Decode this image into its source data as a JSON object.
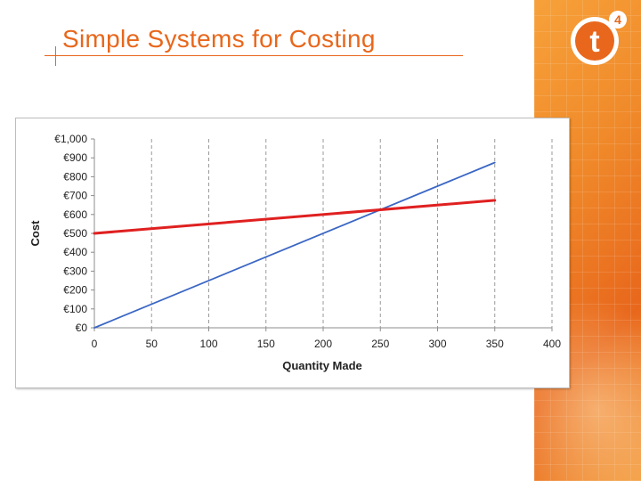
{
  "slide": {
    "title": "Simple Systems for Costing",
    "logo_text": "t",
    "logo_sup": "4",
    "accent_color": "#e8671c"
  },
  "chart_data": {
    "type": "line",
    "xlabel": "Quantity Made",
    "ylabel": "Cost",
    "xlim": [
      0,
      400
    ],
    "ylim": [
      0,
      1000
    ],
    "x_ticks": [
      0,
      50,
      100,
      150,
      200,
      250,
      300,
      350,
      400
    ],
    "y_ticks": [
      0,
      100,
      200,
      300,
      400,
      500,
      600,
      700,
      800,
      900,
      1000
    ],
    "y_tick_labels": [
      "€0",
      "€100",
      "€200",
      "€300",
      "€400",
      "€500",
      "€600",
      "€700",
      "€800",
      "€900",
      "€1,000"
    ],
    "vertical_grid": "dashed",
    "legend": "none",
    "series": [
      {
        "color": "#3a66c4",
        "x": [
          0,
          350
        ],
        "y": [
          0,
          875
        ]
      },
      {
        "color": "#e02020",
        "x": [
          0,
          350
        ],
        "y": [
          500,
          675
        ]
      }
    ]
  }
}
